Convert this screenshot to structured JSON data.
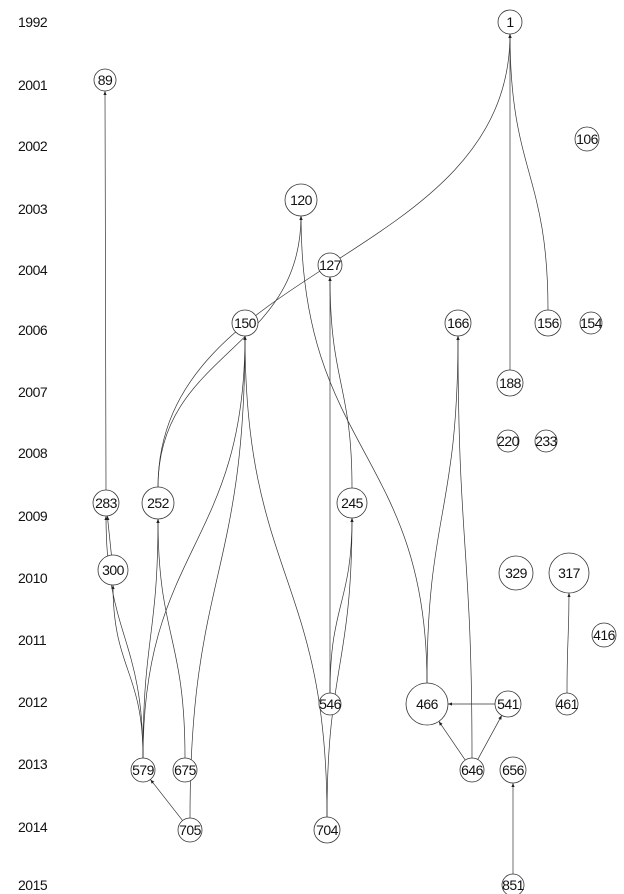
{
  "years": [
    "1992",
    "2001",
    "2002",
    "2003",
    "2004",
    "2006",
    "2007",
    "2008",
    "2009",
    "2010",
    "2011",
    "2012",
    "2013",
    "2014",
    "2015"
  ],
  "nodes": [
    {
      "label": "1"
    },
    {
      "label": "89"
    },
    {
      "label": "106"
    },
    {
      "label": "120"
    },
    {
      "label": "127"
    },
    {
      "label": "150"
    },
    {
      "label": "166"
    },
    {
      "label": "156"
    },
    {
      "label": "154"
    },
    {
      "label": "188"
    },
    {
      "label": "220"
    },
    {
      "label": "233"
    },
    {
      "label": "283"
    },
    {
      "label": "252"
    },
    {
      "label": "245"
    },
    {
      "label": "300"
    },
    {
      "label": "329"
    },
    {
      "label": "317"
    },
    {
      "label": "416"
    },
    {
      "label": "546"
    },
    {
      "label": "466"
    },
    {
      "label": "541"
    },
    {
      "label": "461"
    },
    {
      "label": "579"
    },
    {
      "label": "675"
    },
    {
      "label": "646"
    },
    {
      "label": "656"
    },
    {
      "label": "705"
    },
    {
      "label": "704"
    },
    {
      "label": "851"
    }
  ]
}
